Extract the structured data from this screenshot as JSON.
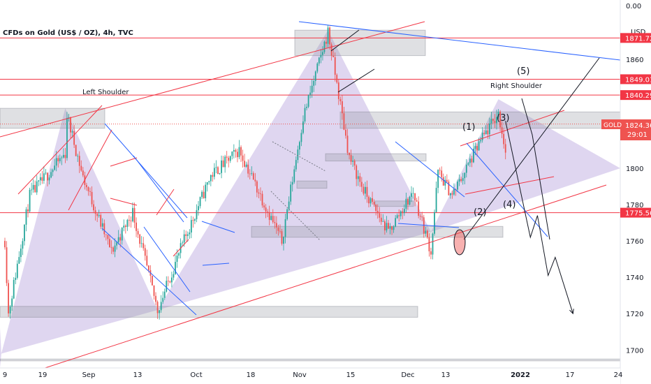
{
  "chart_data": {
    "type": "candlestick",
    "title": "CFDs on Gold (US$ / OZ), 4h, TVC",
    "y_axis": {
      "unit": "USD",
      "top_label": "0.00",
      "ticks": [
        1700,
        1720,
        1740,
        1760,
        1780,
        1800,
        1860
      ],
      "range": [
        1690,
        1890
      ]
    },
    "x_axis": {
      "tick_labels": [
        "9",
        "19",
        "Sep",
        "13",
        "Oct",
        "18",
        "Nov",
        "15",
        "Dec",
        "13",
        "2022",
        "17",
        "24"
      ]
    },
    "price_levels": [
      {
        "label": "1871.72",
        "value": 1871.72
      },
      {
        "label": "1849.01",
        "value": 1849.01
      },
      {
        "label": "1840.29",
        "value": 1840.29
      },
      {
        "label": "1775.56",
        "value": 1775.56
      }
    ],
    "current_price": {
      "symbol": "GOLD",
      "price": "1824.36",
      "countdown": "29:01"
    },
    "annotations": [
      {
        "text": "Left Shoulder"
      },
      {
        "text": "Right Shoulder"
      },
      {
        "text": "(1)"
      },
      {
        "text": "(2)"
      },
      {
        "text": "(3)"
      },
      {
        "text": "(4)"
      },
      {
        "text": "(5)"
      }
    ],
    "price_anchors": [
      {
        "date": "Aug 9",
        "price": 1760
      },
      {
        "date": "Aug 10",
        "price": 1720
      },
      {
        "date": "Aug 16",
        "price": 1785
      },
      {
        "date": "Aug 26",
        "price": 1808
      },
      {
        "date": "Sep 3",
        "price": 1833
      },
      {
        "date": "Sep 8",
        "price": 1795
      },
      {
        "date": "Sep 16",
        "price": 1754
      },
      {
        "date": "Sep 22",
        "price": 1776
      },
      {
        "date": "Sep 29",
        "price": 1722
      },
      {
        "date": "Oct 6",
        "price": 1758
      },
      {
        "date": "Oct 14",
        "price": 1796
      },
      {
        "date": "Oct 22",
        "price": 1810
      },
      {
        "date": "Nov 3",
        "price": 1760
      },
      {
        "date": "Nov 9",
        "price": 1828
      },
      {
        "date": "Nov 16",
        "price": 1875
      },
      {
        "date": "Nov 22",
        "price": 1806
      },
      {
        "date": "Nov 26",
        "price": 1788
      },
      {
        "date": "Dec 3",
        "price": 1765
      },
      {
        "date": "Dec 10",
        "price": 1787
      },
      {
        "date": "Dec 15",
        "price": 1754
      },
      {
        "date": "Dec 17",
        "price": 1798
      },
      {
        "date": "Dec 21",
        "price": 1785
      },
      {
        "date": "Dec 29",
        "price": 1815
      },
      {
        "date": "Jan 3",
        "price": 1830
      },
      {
        "date": "Jan 5",
        "price": 1810
      }
    ],
    "projection_path": [
      {
        "date": "Jan 5",
        "price": 1826
      },
      {
        "date": "Jan 12",
        "price": 1762
      },
      {
        "date": "Jan 14",
        "price": 1774
      },
      {
        "date": "Jan 17",
        "price": 1741
      },
      {
        "date": "Jan 19",
        "price": 1751
      },
      {
        "date": "Jan 24",
        "price": 1720
      }
    ],
    "colors": {
      "bull": "#26a69a",
      "bear": "#ef5350",
      "level_line": "#f23645",
      "trend_line": "#2962ff",
      "fill": "#b39ddb"
    },
    "grid": false
  }
}
